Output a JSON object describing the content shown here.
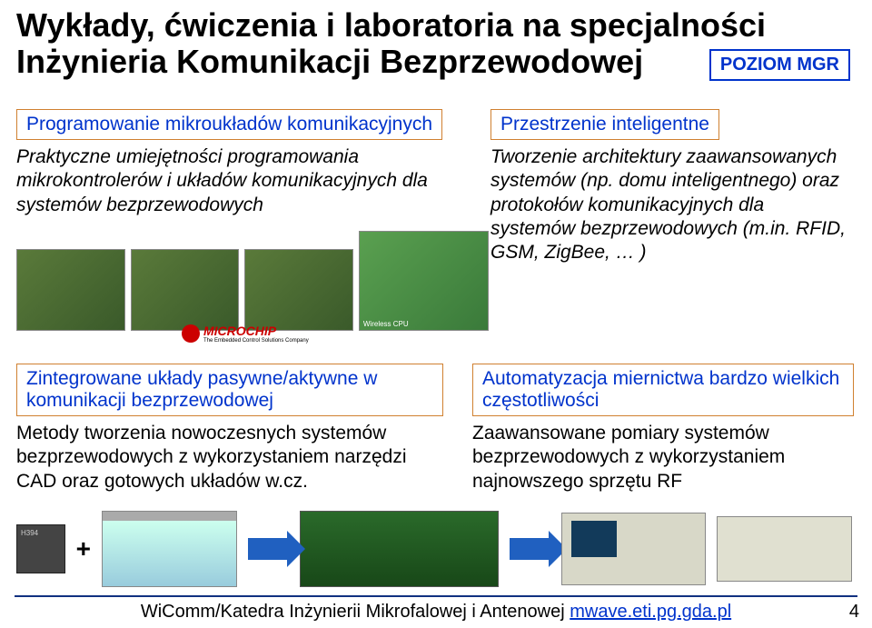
{
  "colors": {
    "accent_blue": "#0033cc",
    "box_border": "#d08030",
    "arrow": "#2060c0",
    "microchip_red": "#c00000",
    "rule": "#103080",
    "background": "#ffffff"
  },
  "typography": {
    "title_fontsize": 36,
    "body_fontsize": 21,
    "footer_fontsize": 20,
    "font_family": "Arial"
  },
  "title_line1": "Wykłady, ćwiczenia i laboratoria na specjalności",
  "title_line2": "Inżynieria Komunikacji Bezprzewodowej",
  "level_badge": "POZIOM MGR",
  "left1": {
    "heading": "Programowanie mikroukładów komunikacyjnych",
    "desc": "Praktyczne umiejętności programowania mikrokontrolerów i układów komunikacyjnych dla systemów bezprzewodowych"
  },
  "right1": {
    "heading": "Przestrzenie inteligentne",
    "desc": "Tworzenie architektury zaawansowanych systemów (np. domu inteligentnego) oraz protokołów komunikacyjnych dla systemów bezprzewodowych (m.in. RFID, GSM, ZigBee, … )"
  },
  "left2": {
    "heading": "Zintegrowane układy pasywne/aktywne w komunikacji bezprzewodowej",
    "desc": "Metody tworzenia nowoczesnych systemów bezprzewodowych z wykorzystaniem narzędzi CAD oraz gotowych układów w.cz."
  },
  "right2": {
    "heading": "Automatyzacja miernictwa bardzo wielkich częstotliwości",
    "desc": "Zaawansowane pomiary systemów bezprzewodowych z wykorzystaniem najnowszego sprzętu RF"
  },
  "microchip": {
    "name": "MICROCHIP",
    "tag": "The Embedded Control Solutions Company"
  },
  "plus": "+",
  "footer": {
    "text_black": "WiComm/Katedra Inżynierii Mikrofalowej i Antenowej ",
    "link": "mwave.eti.pg.gda.pl"
  },
  "page_number": "4"
}
